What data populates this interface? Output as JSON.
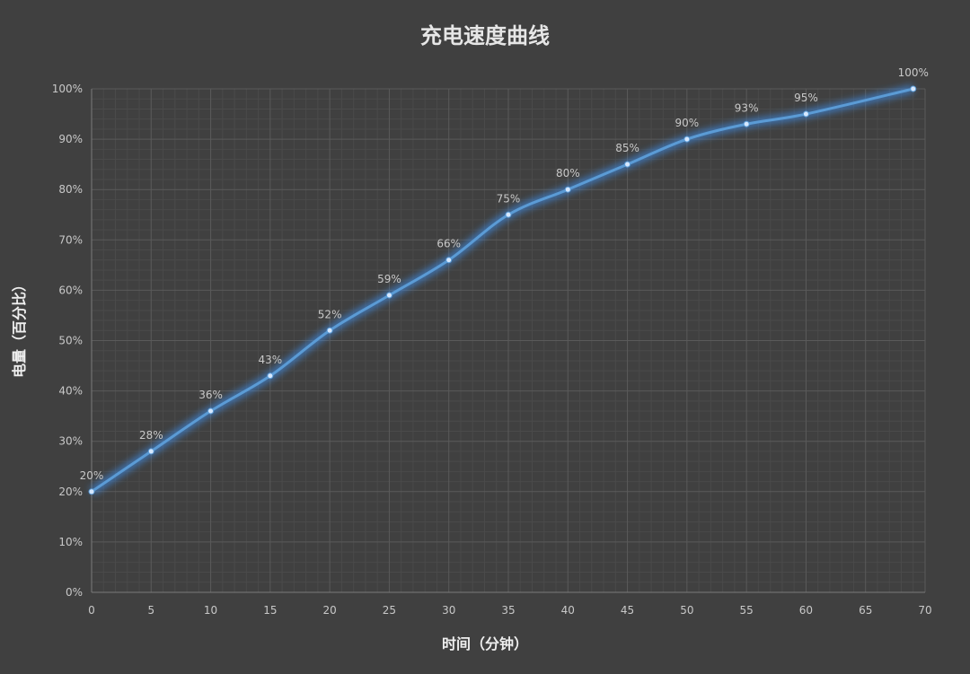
{
  "chart_data": {
    "type": "line",
    "title": "充电速度曲线",
    "xlabel": "时间（分钟）",
    "ylabel": "电量（百分比）",
    "x": [
      0,
      5,
      10,
      15,
      20,
      25,
      30,
      35,
      40,
      45,
      50,
      55,
      60,
      69
    ],
    "values": [
      20,
      28,
      36,
      43,
      52,
      59,
      66,
      75,
      80,
      85,
      90,
      93,
      95,
      100
    ],
    "data_labels": [
      "20%",
      "28%",
      "36%",
      "43%",
      "52%",
      "59%",
      "66%",
      "75%",
      "80%",
      "85%",
      "90%",
      "93%",
      "95%",
      "100%"
    ],
    "xlim": [
      0,
      70
    ],
    "ylim": [
      0,
      100
    ],
    "x_ticks": [
      "0",
      "5",
      "10",
      "15",
      "20",
      "25",
      "30",
      "35",
      "40",
      "45",
      "50",
      "55",
      "60",
      "65",
      "70"
    ],
    "y_ticks": [
      "0%",
      "10%",
      "20%",
      "30%",
      "40%",
      "50%",
      "60%",
      "70%",
      "80%",
      "90%",
      "100%"
    ],
    "grid": true,
    "legend": "none",
    "colors": {
      "line": "#5b9bd5",
      "glow": "#3d86d8",
      "grid_major": "#5a5a5a",
      "grid_minor": "#4a4a4a",
      "background": "#404040"
    }
  }
}
